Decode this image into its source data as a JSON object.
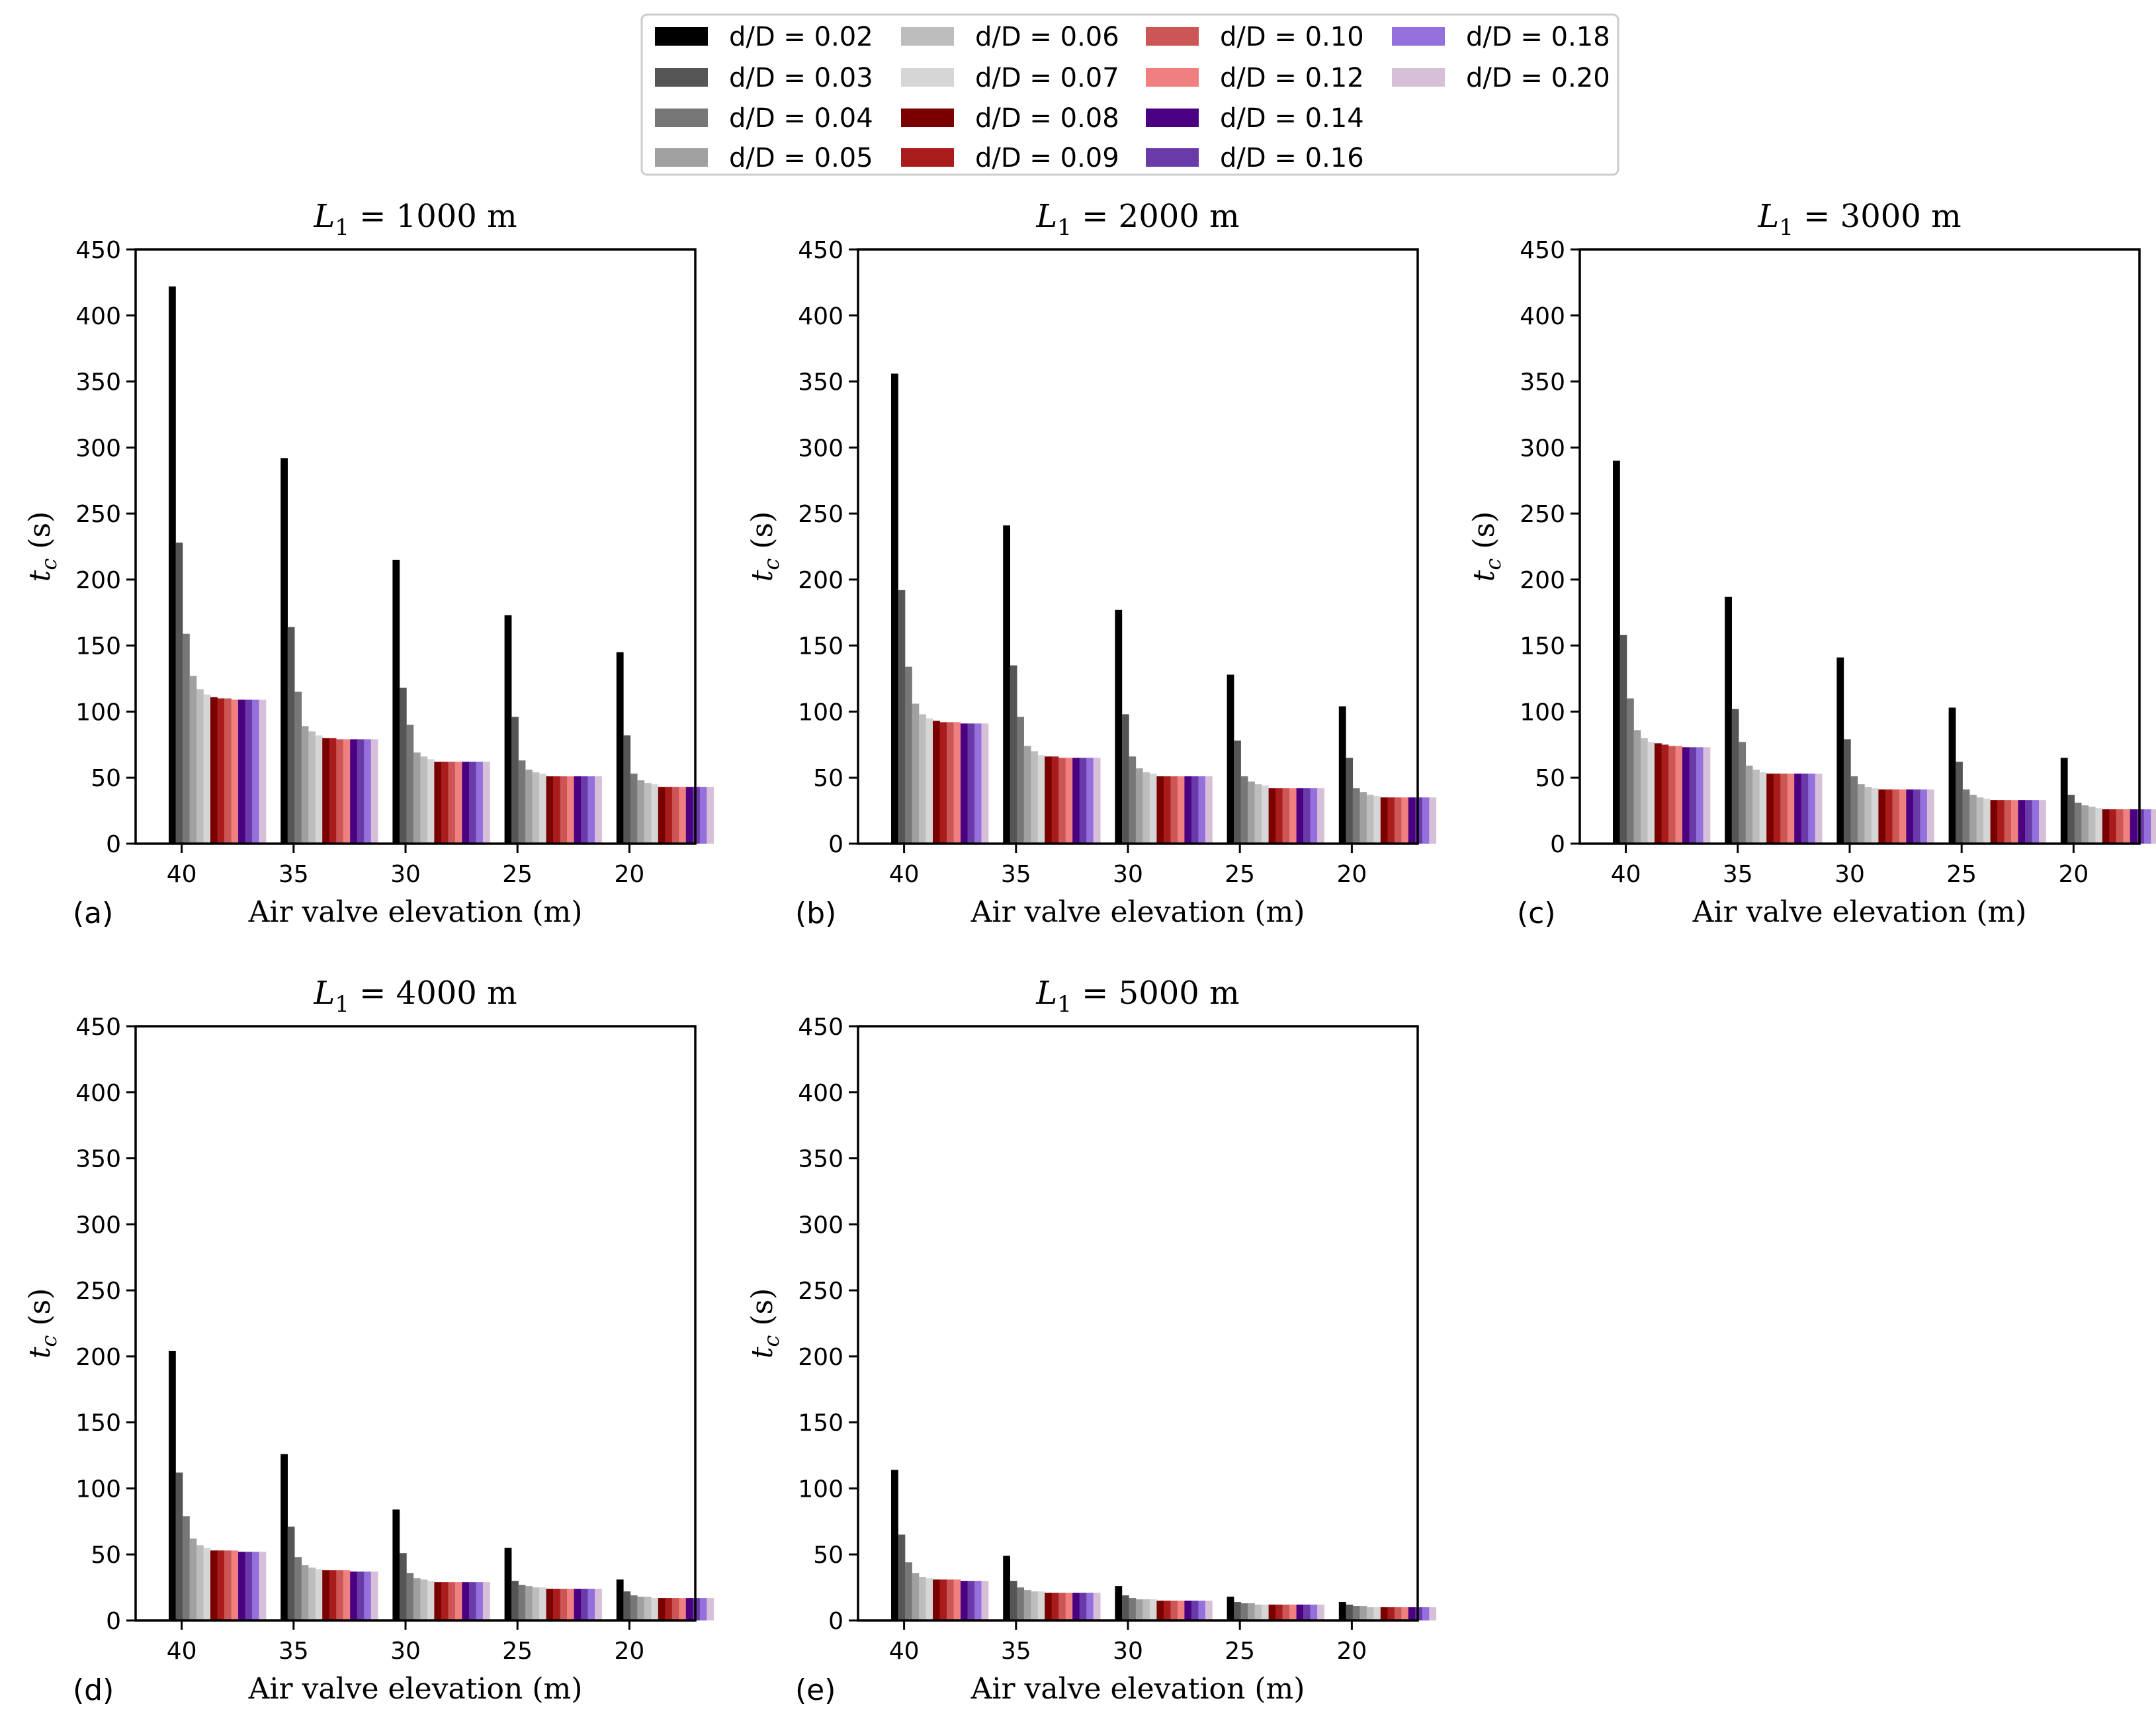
{
  "chart_data": {
    "type": "bar",
    "legend_placement": "top-center",
    "series": [
      {
        "name": "d/D = 0.02",
        "color": "#000000"
      },
      {
        "name": "d/D = 0.03",
        "color": "#555555"
      },
      {
        "name": "d/D = 0.04",
        "color": "#777777"
      },
      {
        "name": "d/D = 0.05",
        "color": "#a0a0a0"
      },
      {
        "name": "d/D = 0.06",
        "color": "#bdbdbd"
      },
      {
        "name": "d/D = 0.07",
        "color": "#d6d6d6"
      },
      {
        "name": "d/D = 0.08",
        "color": "#7a0000"
      },
      {
        "name": "d/D = 0.09",
        "color": "#a81c1c"
      },
      {
        "name": "d/D = 0.10",
        "color": "#cc5555"
      },
      {
        "name": "d/D = 0.12",
        "color": "#f08080"
      },
      {
        "name": "d/D = 0.14",
        "color": "#4b0082"
      },
      {
        "name": "d/D = 0.16",
        "color": "#6a3aa8"
      },
      {
        "name": "d/D = 0.18",
        "color": "#9370db"
      },
      {
        "name": "d/D = 0.20",
        "color": "#d8bfd8"
      }
    ],
    "categories": [
      "40",
      "35",
      "30",
      "25",
      "20"
    ],
    "ylim": [
      0,
      450
    ],
    "yticks": [
      "0",
      "50",
      "100",
      "150",
      "200",
      "250",
      "300",
      "350",
      "400",
      "450"
    ],
    "xlabel": "Air valve elevation (m)",
    "ylabel_main": "t",
    "ylabel_sub": "c",
    "ylabel_unit": "(s)",
    "panels": [
      {
        "label": "(a)",
        "title_main": "L",
        "title_sub": "1",
        "title_rest": " = 1000 m",
        "values": [
          [
            422,
            228,
            159,
            127,
            117,
            113,
            111,
            110,
            110,
            109,
            109,
            109,
            109,
            109
          ],
          [
            292,
            164,
            115,
            89,
            85,
            82,
            80,
            80,
            79,
            79,
            79,
            79,
            79,
            79
          ],
          [
            215,
            118,
            90,
            69,
            66,
            64,
            62,
            62,
            62,
            62,
            62,
            62,
            62,
            62
          ],
          [
            173,
            96,
            63,
            56,
            54,
            53,
            51,
            51,
            51,
            51,
            51,
            51,
            51,
            51
          ],
          [
            145,
            82,
            53,
            48,
            46,
            45,
            43,
            43,
            43,
            43,
            43,
            43,
            43,
            43
          ]
        ]
      },
      {
        "label": "(b)",
        "title_main": "L",
        "title_sub": "1",
        "title_rest": " = 2000 m",
        "values": [
          [
            356,
            192,
            134,
            106,
            98,
            95,
            93,
            92,
            92,
            92,
            91,
            91,
            91,
            91
          ],
          [
            241,
            135,
            96,
            74,
            70,
            67,
            66,
            66,
            65,
            65,
            65,
            65,
            65,
            65
          ],
          [
            177,
            98,
            66,
            57,
            54,
            53,
            51,
            51,
            51,
            51,
            51,
            51,
            51,
            51
          ],
          [
            128,
            78,
            51,
            47,
            45,
            44,
            42,
            42,
            42,
            42,
            42,
            42,
            42,
            42
          ],
          [
            104,
            65,
            42,
            39,
            37,
            36,
            35,
            35,
            35,
            35,
            35,
            35,
            35,
            35
          ]
        ]
      },
      {
        "label": "(c)",
        "title_main": "L",
        "title_sub": "1",
        "title_rest": " = 3000 m",
        "values": [
          [
            290,
            158,
            110,
            86,
            80,
            77,
            76,
            75,
            74,
            74,
            73,
            73,
            73,
            73
          ],
          [
            187,
            102,
            77,
            59,
            56,
            54,
            53,
            53,
            53,
            53,
            53,
            53,
            53,
            53
          ],
          [
            141,
            79,
            51,
            45,
            43,
            42,
            41,
            41,
            41,
            41,
            41,
            41,
            41,
            41
          ],
          [
            103,
            62,
            41,
            37,
            35,
            34,
            33,
            33,
            33,
            33,
            33,
            33,
            33,
            33
          ],
          [
            65,
            37,
            31,
            29,
            28,
            27,
            26,
            26,
            26,
            26,
            26,
            26,
            26,
            26
          ]
        ]
      },
      {
        "label": "(d)",
        "title_main": "L",
        "title_sub": "1",
        "title_rest": " = 4000 m",
        "values": [
          [
            204,
            112,
            79,
            62,
            57,
            55,
            53,
            53,
            53,
            53,
            52,
            52,
            52,
            52
          ],
          [
            126,
            71,
            48,
            42,
            40,
            39,
            38,
            38,
            38,
            38,
            37,
            37,
            37,
            37
          ],
          [
            84,
            51,
            36,
            32,
            31,
            30,
            29,
            29,
            29,
            29,
            29,
            29,
            29,
            29
          ],
          [
            55,
            30,
            27,
            26,
            25,
            25,
            24,
            24,
            24,
            24,
            24,
            24,
            24,
            24
          ],
          [
            31,
            22,
            19,
            18,
            18,
            17,
            17,
            17,
            17,
            17,
            17,
            17,
            17,
            17
          ]
        ]
      },
      {
        "label": "(e)",
        "title_main": "L",
        "title_sub": "1",
        "title_rest": " = 5000 m",
        "values": [
          [
            114,
            65,
            44,
            36,
            33,
            32,
            31,
            31,
            31,
            31,
            30,
            30,
            30,
            30
          ],
          [
            49,
            30,
            25,
            23,
            22,
            22,
            21,
            21,
            21,
            21,
            21,
            21,
            21,
            21
          ],
          [
            26,
            19,
            17,
            16,
            16,
            16,
            15,
            15,
            15,
            15,
            15,
            15,
            15,
            15
          ],
          [
            18,
            14,
            13,
            13,
            12,
            12,
            12,
            12,
            12,
            12,
            12,
            12,
            12,
            12
          ],
          [
            14,
            12,
            11,
            11,
            10,
            10,
            10,
            10,
            10,
            10,
            10,
            10,
            10,
            10
          ]
        ]
      }
    ]
  }
}
